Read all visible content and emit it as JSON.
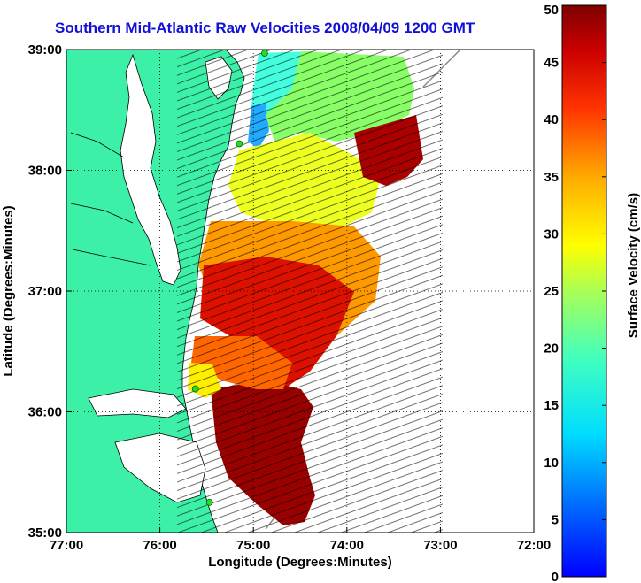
{
  "title": "Southern Mid-Atlantic Raw Velocities 2008/04/09 1200 GMT",
  "axes": {
    "xlabel": "Longitude (Degrees:Minutes)",
    "ylabel": "Latitude (Degrees:Minutes)",
    "x_ticks": [
      "77:00",
      "76:00",
      "75:00",
      "74:00",
      "73:00",
      "72:00"
    ],
    "y_ticks": [
      "39:00",
      "38:00",
      "37:00",
      "36:00",
      "35:00"
    ],
    "xlim": [
      -77,
      -72
    ],
    "ylim": [
      35,
      39
    ],
    "grid": "dotted"
  },
  "colorbar": {
    "label": "Surface Velocity (cm/s)",
    "ticks": [
      "50",
      "45",
      "40",
      "35",
      "30",
      "25",
      "20",
      "15",
      "10",
      "5",
      "0"
    ],
    "range": [
      0,
      50
    ],
    "colormap": "jet"
  },
  "colors": {
    "land": "#3cf0a8",
    "water": "#ffffff",
    "title": "#1010d8",
    "site_marker": "#22dd22"
  },
  "stations": [
    {
      "lon": -74.88,
      "lat": 38.97
    },
    {
      "lon": -75.15,
      "lat": 38.22
    },
    {
      "lon": -75.62,
      "lat": 36.19
    },
    {
      "lon": -75.47,
      "lat": 35.25
    }
  ]
}
